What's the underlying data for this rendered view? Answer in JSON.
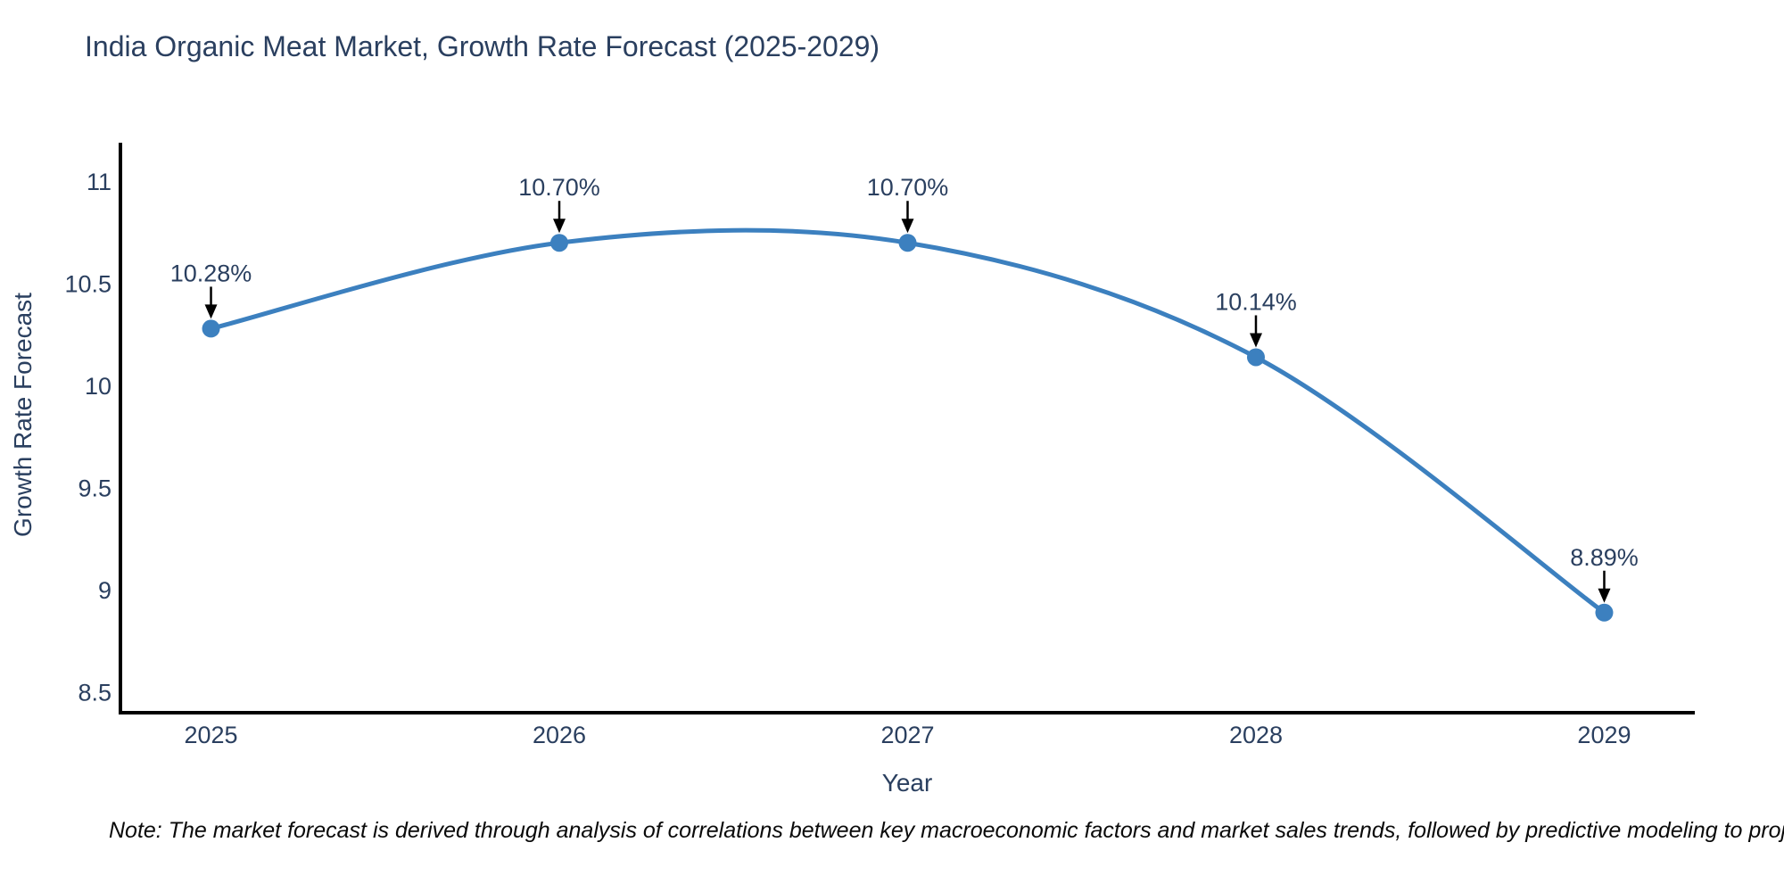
{
  "chart_data": {
    "type": "line",
    "title": "India Organic Meat Market, Growth Rate Forecast (2025-2029)",
    "xlabel": "Year",
    "ylabel": "Growth Rate Forecast",
    "x": [
      2025,
      2026,
      2027,
      2028,
      2029
    ],
    "series": [
      {
        "name": "Growth Rate Forecast",
        "values": [
          10.28,
          10.7,
          10.7,
          10.14,
          8.89
        ],
        "point_labels": [
          "10.28%",
          "10.70%",
          "10.70%",
          "10.14%",
          "8.89%"
        ]
      }
    ],
    "xticks": [
      "2025",
      "2026",
      "2027",
      "2028",
      "2029"
    ],
    "yticks": [
      "8.5",
      "9",
      "9.5",
      "10",
      "10.5",
      "11"
    ],
    "ytick_values": [
      8.5,
      9,
      9.5,
      10,
      10.5,
      11
    ],
    "xlim": [
      2024.74,
      2029.26
    ],
    "ylim": [
      8.4,
      11.19
    ],
    "line_shape": "spline",
    "grid": false,
    "legend": "none",
    "colors": {
      "line": "#3c80bf",
      "marker": "#3c80bf",
      "text": "#2a3f5f",
      "axis": "#000000",
      "arrow": "#000000"
    }
  },
  "note": {
    "text": "Note: The market forecast is derived through analysis of correlations between key macroeconomic factors and market sales trends, followed by predictive modeling to project future sal"
  }
}
